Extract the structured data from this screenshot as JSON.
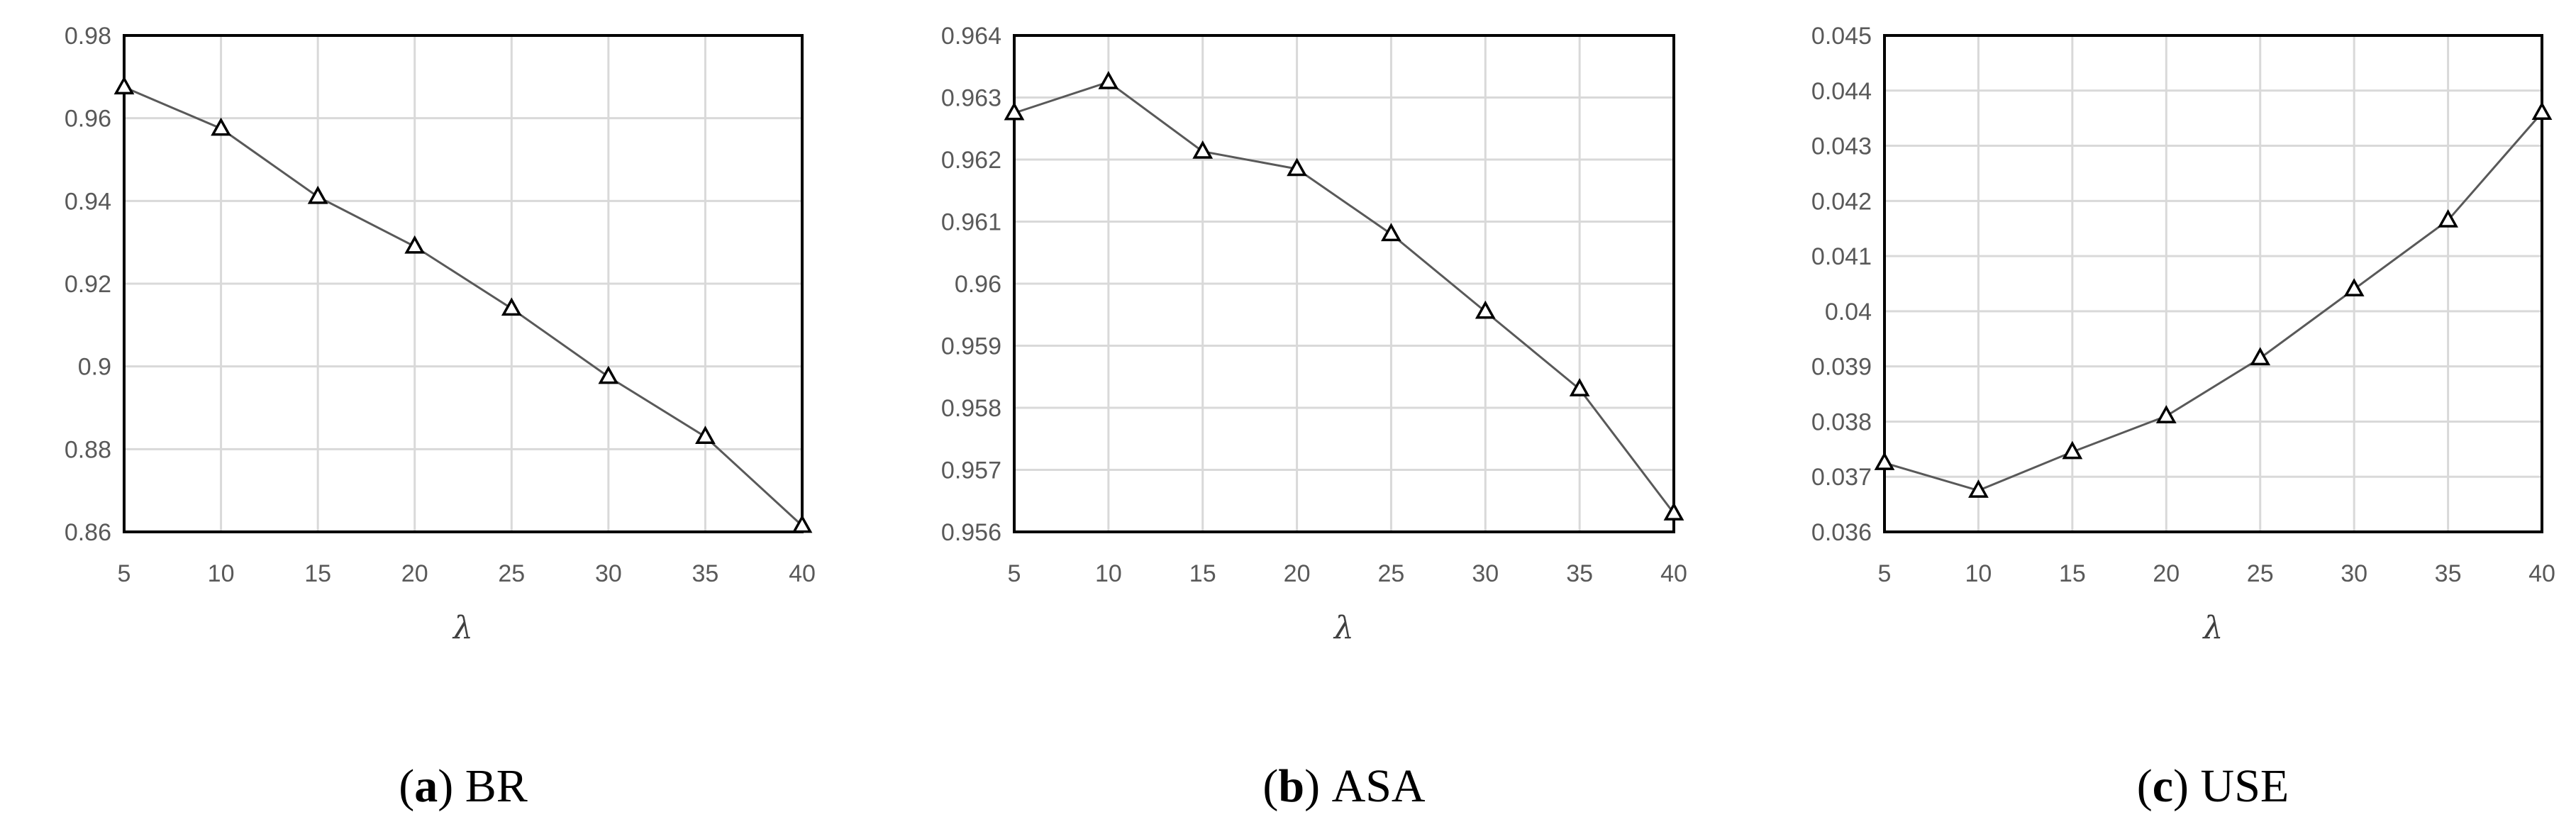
{
  "colors": {
    "line": "#595959",
    "grid": "#d9d9d9",
    "frame": "#000000",
    "marker": "#000000"
  },
  "chart_data": [
    {
      "type": "line",
      "caption_open": "(",
      "caption_letter": "a",
      "caption_close": ")",
      "caption_text": "BR",
      "xlabel": "λ",
      "ylabel": "",
      "x": [
        5,
        10,
        15,
        20,
        25,
        30,
        35,
        40
      ],
      "series": [
        {
          "values": [
            0.9675,
            0.9575,
            0.941,
            0.929,
            0.914,
            0.8975,
            0.883,
            0.8615
          ],
          "marker": "triangle-open"
        }
      ],
      "xlim": [
        5,
        40
      ],
      "ylim": [
        0.86,
        0.98
      ],
      "yticks": [
        "0.86",
        "0.88",
        "0.9",
        "0.92",
        "0.94",
        "0.96",
        "0.98"
      ],
      "xticks": [
        "5",
        "10",
        "15",
        "20",
        "25",
        "30",
        "35",
        "40"
      ],
      "grid": true,
      "legend": "none"
    },
    {
      "type": "line",
      "caption_open": "(",
      "caption_letter": "b",
      "caption_close": ")",
      "caption_text": "ASA",
      "xlabel": "λ",
      "ylabel": "",
      "x": [
        5,
        10,
        15,
        20,
        25,
        30,
        35,
        40
      ],
      "series": [
        {
          "values": [
            0.96275,
            0.96325,
            0.96213,
            0.96185,
            0.9608,
            0.95955,
            0.9583,
            0.9563
          ],
          "marker": "triangle-open"
        }
      ],
      "xlim": [
        5,
        40
      ],
      "ylim": [
        0.956,
        0.964
      ],
      "yticks": [
        "0.956",
        "0.957",
        "0.958",
        "0.959",
        "0.96",
        "0.961",
        "0.962",
        "0.963",
        "0.964"
      ],
      "xticks": [
        "5",
        "10",
        "15",
        "20",
        "25",
        "30",
        "35",
        "40"
      ],
      "grid": true,
      "legend": "none"
    },
    {
      "type": "line",
      "caption_open": "(",
      "caption_letter": "c",
      "caption_close": ")",
      "caption_text": "USE",
      "xlabel": "λ",
      "ylabel": "",
      "x": [
        5,
        10,
        15,
        20,
        25,
        30,
        35,
        40
      ],
      "series": [
        {
          "values": [
            0.03725,
            0.03675,
            0.03745,
            0.0381,
            0.03915,
            0.0404,
            0.04165,
            0.0436
          ],
          "marker": "triangle-open"
        }
      ],
      "xlim": [
        5,
        40
      ],
      "ylim": [
        0.036,
        0.045
      ],
      "yticks": [
        "0.036",
        "0.037",
        "0.038",
        "0.039",
        "0.04",
        "0.041",
        "0.042",
        "0.043",
        "0.044",
        "0.045"
      ],
      "xticks": [
        "5",
        "10",
        "15",
        "20",
        "25",
        "30",
        "35",
        "40"
      ],
      "grid": true,
      "legend": "none"
    }
  ]
}
